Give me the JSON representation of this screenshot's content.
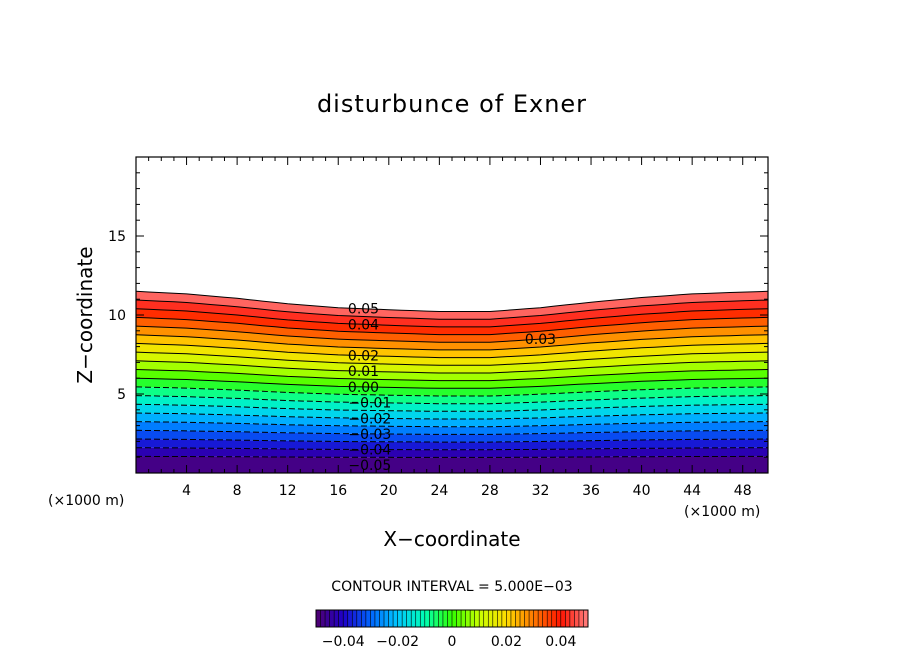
{
  "chart_data": {
    "type": "contour",
    "title": "disturbunce of Exner",
    "xlabel": "X−coordinate",
    "ylabel": "Z−coordinate",
    "x_unit": "(×1000 m)",
    "y_unit": "(×1000 m)",
    "xlim": [
      0,
      50
    ],
    "ylim": [
      0,
      20
    ],
    "x_ticks": [
      4,
      8,
      12,
      16,
      20,
      24,
      28,
      32,
      36,
      40,
      44,
      48
    ],
    "y_ticks": [
      5,
      10,
      15
    ],
    "x_tick_labels": [
      "4",
      "8",
      "12",
      "16",
      "20",
      "24",
      "28",
      "32",
      "36",
      "40",
      "44",
      "48"
    ],
    "y_tick_labels": [
      "5",
      "10",
      "15"
    ],
    "contour_interval_text": "CONTOUR INTERVAL = 5.000E−03",
    "contour_interval": 0.005,
    "value_range": [
      -0.05,
      0.05
    ],
    "contour_labels": [
      {
        "text": "0.05",
        "value": 0.05,
        "x": 18.0
      },
      {
        "text": "0.04",
        "value": 0.04,
        "x": 18.0
      },
      {
        "text": "0.03",
        "value": 0.03,
        "x": 32.0
      },
      {
        "text": "0.02",
        "value": 0.02,
        "x": 18.0
      },
      {
        "text": "0.01",
        "value": 0.01,
        "x": 18.0
      },
      {
        "text": "0.00",
        "value": 0.0,
        "x": 18.0
      },
      {
        "text": "−0.01",
        "value": -0.01,
        "x": 18.5
      },
      {
        "text": "−0.02",
        "value": -0.02,
        "x": 18.5
      },
      {
        "text": "−0.03",
        "value": -0.03,
        "x": 18.5
      },
      {
        "text": "−0.04",
        "value": -0.04,
        "x": 18.5
      },
      {
        "text": "−0.05",
        "value": -0.05,
        "x": 18.5
      }
    ],
    "contour_profile": {
      "x": [
        0,
        4,
        8,
        12,
        16,
        20,
        24,
        28,
        32,
        36,
        40,
        44,
        48,
        50
      ],
      "z_top": [
        11.5,
        11.35,
        11.1,
        10.8,
        10.6,
        10.5,
        10.4,
        10.4,
        10.6,
        10.9,
        11.15,
        11.35,
        11.45,
        11.5
      ],
      "shift": [
        0,
        -0.05,
        -0.15,
        -0.3,
        -0.45,
        -0.55,
        -0.6,
        -0.6,
        -0.45,
        -0.3,
        -0.15,
        -0.05,
        0,
        0
      ]
    },
    "colorbar": {
      "colors": [
        "#500070",
        "#1e00c8",
        "#0064ff",
        "#00c8ff",
        "#00ffb4",
        "#32ff00",
        "#c8ff00",
        "#ffdc00",
        "#ff7800",
        "#ff1400",
        "#ff8080"
      ],
      "tick_values": [
        -0.04,
        -0.02,
        0,
        0.02,
        0.04
      ],
      "tick_labels": [
        "−0.04",
        "−0.02",
        "0",
        "0.02",
        "0.04"
      ]
    },
    "grid": false
  }
}
